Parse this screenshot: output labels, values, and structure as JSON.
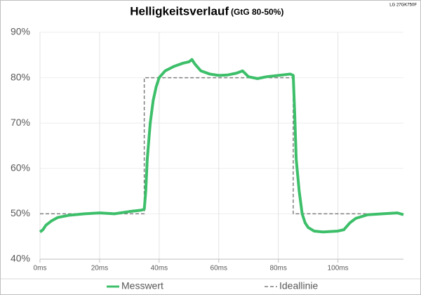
{
  "chart_data": {
    "type": "line",
    "title": "Helligkeitsverlauf",
    "subtitle": "(GtG 80-50%)",
    "annotation": "LG 27GK750F",
    "xlim": [
      0,
      122
    ],
    "ylim": [
      40,
      90
    ],
    "xticks": [
      {
        "value": 0,
        "label": "0ms"
      },
      {
        "value": 20,
        "label": "20ms"
      },
      {
        "value": 40,
        "label": "40ms"
      },
      {
        "value": 60,
        "label": "60ms"
      },
      {
        "value": 80,
        "label": "80ms"
      },
      {
        "value": 100,
        "label": "100ms"
      }
    ],
    "yticks": [
      {
        "value": 40,
        "label": "40%"
      },
      {
        "value": 50,
        "label": "50%"
      },
      {
        "value": 60,
        "label": "60%"
      },
      {
        "value": 70,
        "label": "70%"
      },
      {
        "value": 80,
        "label": "80%"
      },
      {
        "value": 90,
        "label": "90%"
      }
    ],
    "grid": true,
    "legend": "bottom",
    "series": [
      {
        "name": "Messwert",
        "color": "#3dbf6a",
        "dash": false,
        "x": [
          0,
          1,
          2,
          4,
          6,
          10,
          15,
          20,
          25,
          30,
          34,
          35,
          35.5,
          36,
          37,
          38,
          39,
          40,
          42,
          45,
          48,
          50,
          51,
          52,
          54,
          57,
          60,
          63,
          66,
          68,
          70,
          73,
          76,
          80,
          84,
          85,
          85.5,
          86,
          87,
          88,
          89,
          90,
          92,
          95,
          100,
          102,
          104,
          106,
          110,
          115,
          120,
          122
        ],
        "values": [
          46,
          46.5,
          47.5,
          48.5,
          49.2,
          49.7,
          50,
          50.2,
          50,
          50.5,
          50.8,
          51,
          55,
          62,
          70,
          75,
          78,
          80,
          81.5,
          82.5,
          83.2,
          83.5,
          84,
          83,
          81.5,
          80.8,
          80.5,
          80.6,
          81,
          81.5,
          80.2,
          79.8,
          80.2,
          80.5,
          80.8,
          80.5,
          72,
          62,
          55,
          50,
          48,
          47,
          46.2,
          46,
          46.2,
          46.5,
          48,
          49,
          49.8,
          50,
          50.2,
          49.8
        ]
      },
      {
        "name": "Ideallinie",
        "color": "#7f7f7f",
        "dash": true,
        "x": [
          0,
          35,
          35,
          85,
          85,
          122
        ],
        "values": [
          50,
          50,
          80,
          80,
          50,
          50
        ]
      }
    ]
  }
}
